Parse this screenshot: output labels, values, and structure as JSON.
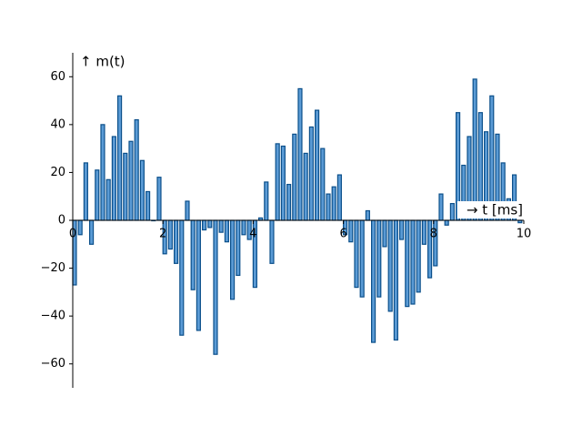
{
  "chart_data": {
    "type": "bar",
    "y_label": "↑ m(t)",
    "x_label": "→ t [ms]",
    "color": "#5b9bd5",
    "edge_color": "#0b4f8a",
    "x": [
      0,
      0.125,
      0.25,
      0.375,
      0.5,
      0.625,
      0.75,
      0.875,
      1,
      1.125,
      1.25,
      1.375,
      1.5,
      1.625,
      1.75,
      1.875,
      2,
      2.125,
      2.25,
      2.375,
      2.5,
      2.625,
      2.75,
      2.875,
      3,
      3.125,
      3.25,
      3.375,
      3.5,
      3.625,
      3.75,
      3.875,
      4,
      4.125,
      4.25,
      4.375,
      4.5,
      4.625,
      4.75,
      4.875,
      5,
      5.125,
      5.25,
      5.375,
      5.5,
      5.625,
      5.75,
      5.875,
      6,
      6.125,
      6.25,
      6.375,
      6.5,
      6.625,
      6.75,
      6.875,
      7,
      7.125,
      7.25,
      7.375,
      7.5,
      7.625,
      7.75,
      7.875,
      8,
      8.125,
      8.25,
      8.375,
      8.5,
      8.625,
      8.75,
      8.875,
      9,
      9.125,
      9.25,
      9.375,
      9.5,
      9.625,
      9.75,
      9.875
    ],
    "values": [
      -27,
      -6,
      24,
      -10,
      21,
      40,
      17,
      35,
      52,
      28,
      33,
      42,
      25,
      12,
      0,
      18,
      -14,
      -12,
      -18,
      -48,
      8,
      -29,
      -46,
      -4,
      -3,
      -56,
      -5,
      -9,
      -33,
      -23,
      -6,
      -8,
      -28,
      1,
      16,
      -18,
      32,
      31,
      15,
      36,
      55,
      28,
      39,
      46,
      30,
      11,
      14,
      19,
      -6,
      -9,
      -28,
      -32,
      4,
      -51,
      -32,
      -11,
      -38,
      -50,
      -8,
      -36,
      -35,
      -30,
      -10,
      -24,
      -19,
      11,
      -2,
      7,
      45,
      23,
      35,
      59,
      45,
      37,
      52,
      36,
      24,
      9,
      19,
      -1
    ],
    "xlim": [
      0,
      10
    ],
    "xticks": [
      0,
      2,
      4,
      6,
      8,
      10
    ],
    "ylim": [
      -70,
      70
    ],
    "yticks": [
      {
        "value": -60,
        "label": "−60"
      },
      {
        "value": -40,
        "label": "−40"
      },
      {
        "value": -20,
        "label": "−20"
      },
      0,
      20,
      40,
      60
    ]
  }
}
